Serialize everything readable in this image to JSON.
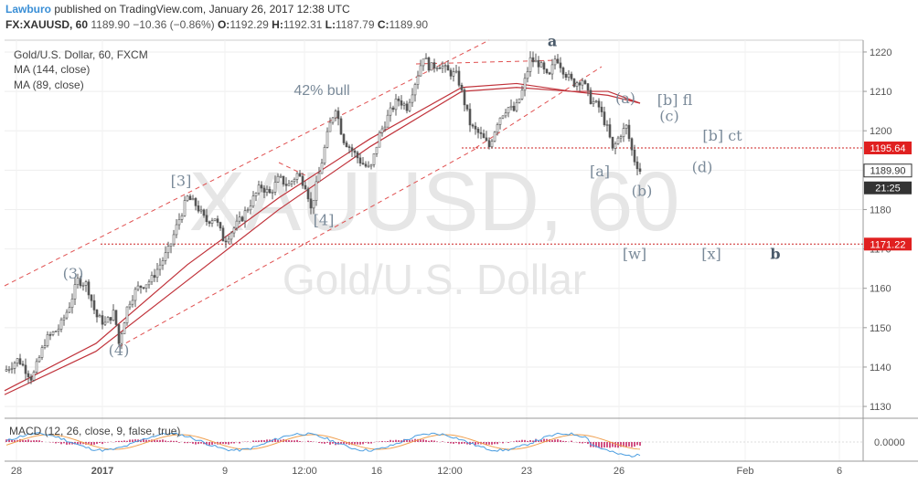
{
  "header": {
    "publisher": "Lawburo",
    "published_text": "published on TradingView.com, January 26, 2017 12:38 UTC",
    "symbol": "FX:XAUUSD, 60",
    "last": "1189.90",
    "change": "−10.36 (−0.86%)",
    "o_label": "O:",
    "o": "1192.29",
    "h_label": "H:",
    "h": "1192.31",
    "l_label": "L:",
    "l": "1187.79",
    "c_label": "C:",
    "c": "1189.90"
  },
  "legend": {
    "title": "Gold/U.S. Dollar, 60, FXCM",
    "ma1": "MA (144, close)",
    "ma2": "MA (89, close)",
    "macd": "MACD (12, 26, close, 9, false, true)"
  },
  "watermark": {
    "line1": "XAUUSD, 60",
    "line2": "Gold/U.S. Dollar"
  },
  "colors": {
    "up": "#555555",
    "down": "#555555",
    "ma": "#c0323a",
    "trend": "#e05050",
    "level": "#cc2222",
    "macd": "#4a9de0",
    "signal": "#f0a050",
    "hist": "#c2185b",
    "label_red": "#e02020",
    "label_dark": "#333333"
  },
  "price_tags": {
    "level1": "1195.64",
    "last": "1189.90",
    "countdown": "21:25",
    "level2": "1171.22"
  },
  "annotations": {
    "trend_label": "42% bull"
  },
  "chart_data": {
    "type": "candlestick",
    "x_ticks": [
      "28",
      "2017",
      "9",
      "12:00",
      "16",
      "12:00",
      "23",
      "26",
      "Feb",
      "6"
    ],
    "y_ticks": [
      1130,
      1140,
      1150,
      1160,
      1170,
      1180,
      1190,
      1200,
      1210,
      1220
    ],
    "ylim": [
      1127,
      1223
    ],
    "macd_ticks": [
      "0.0000"
    ],
    "path_points": [
      [
        0,
        1139
      ],
      [
        15,
        1142
      ],
      [
        30,
        1137
      ],
      [
        45,
        1147
      ],
      [
        60,
        1150
      ],
      [
        70,
        1155
      ],
      [
        80,
        1162
      ],
      [
        90,
        1161
      ],
      [
        100,
        1153
      ],
      [
        110,
        1151
      ],
      [
        120,
        1154
      ],
      [
        125,
        1146
      ],
      [
        135,
        1156
      ],
      [
        145,
        1160
      ],
      [
        160,
        1162
      ],
      [
        170,
        1166
      ],
      [
        180,
        1170
      ],
      [
        190,
        1177
      ],
      [
        200,
        1183
      ],
      [
        210,
        1181
      ],
      [
        220,
        1177
      ],
      [
        230,
        1178
      ],
      [
        240,
        1172
      ],
      [
        250,
        1175
      ],
      [
        260,
        1178
      ],
      [
        270,
        1182
      ],
      [
        280,
        1186
      ],
      [
        290,
        1184
      ],
      [
        300,
        1188
      ],
      [
        310,
        1186
      ],
      [
        320,
        1189
      ],
      [
        330,
        1186
      ],
      [
        335,
        1180
      ],
      [
        345,
        1190
      ],
      [
        355,
        1201
      ],
      [
        362,
        1206
      ],
      [
        370,
        1198
      ],
      [
        380,
        1195
      ],
      [
        390,
        1192
      ],
      [
        400,
        1190
      ],
      [
        410,
        1199
      ],
      [
        420,
        1204
      ],
      [
        430,
        1208
      ],
      [
        440,
        1206
      ],
      [
        450,
        1213
      ],
      [
        458,
        1219
      ],
      [
        465,
        1216
      ],
      [
        475,
        1217
      ],
      [
        485,
        1215
      ],
      [
        495,
        1214
      ],
      [
        502,
        1208
      ],
      [
        510,
        1201
      ],
      [
        520,
        1199
      ],
      [
        530,
        1196
      ],
      [
        540,
        1203
      ],
      [
        550,
        1206
      ],
      [
        558,
        1205
      ],
      [
        566,
        1210
      ],
      [
        575,
        1218
      ],
      [
        585,
        1217
      ],
      [
        595,
        1213
      ],
      [
        603,
        1219
      ],
      [
        612,
        1215
      ],
      [
        622,
        1212
      ],
      [
        632,
        1213
      ],
      [
        640,
        1208
      ],
      [
        650,
        1206
      ],
      [
        660,
        1200
      ],
      [
        665,
        1195
      ],
      [
        673,
        1199
      ],
      [
        680,
        1201
      ],
      [
        688,
        1193
      ],
      [
        695,
        1189.9
      ]
    ],
    "ma144": [
      [
        0,
        1133
      ],
      [
        100,
        1144
      ],
      [
        200,
        1162
      ],
      [
        300,
        1180
      ],
      [
        400,
        1196
      ],
      [
        500,
        1210
      ],
      [
        560,
        1211
      ],
      [
        620,
        1210
      ],
      [
        660,
        1209
      ],
      [
        695,
        1207
      ]
    ],
    "ma89": [
      [
        0,
        1134
      ],
      [
        100,
        1146
      ],
      [
        200,
        1166
      ],
      [
        300,
        1183
      ],
      [
        400,
        1198
      ],
      [
        500,
        1211
      ],
      [
        560,
        1212
      ],
      [
        620,
        1210
      ],
      [
        660,
        1210
      ],
      [
        695,
        1207
      ]
    ],
    "levels": [
      {
        "value": 1195.64,
        "x0": 505
      },
      {
        "value": 1171.22,
        "x0": 110
      }
    ],
    "wave_labels": [
      {
        "text": "(3)",
        "x": 80,
        "y": 1162.5,
        "color": "#7a8a99"
      },
      {
        "text": "(4)",
        "x": 130,
        "y": 1143,
        "color": "#7a8a99"
      },
      {
        "text": "[3]",
        "x": 198,
        "y": 1186,
        "color": "#7a8a99"
      },
      {
        "text": "[4]",
        "x": 354,
        "y": 1176,
        "color": "#7a8a99"
      },
      {
        "text": "a",
        "x": 604,
        "y": 1221.5,
        "color": "#4a5a6a",
        "bold": true
      },
      {
        "text": "(a)",
        "x": 684,
        "y": 1207,
        "color": "#7a8a99"
      },
      {
        "text": "[b] fl",
        "x": 738,
        "y": 1206.5,
        "color": "#7a8a99"
      },
      {
        "text": "(c)",
        "x": 732,
        "y": 1202.5,
        "color": "#7a8a99"
      },
      {
        "text": "[b] ct",
        "x": 790,
        "y": 1197.5,
        "color": "#7a8a99"
      },
      {
        "text": "[a]",
        "x": 656,
        "y": 1188.5,
        "color": "#7a8a99"
      },
      {
        "text": "(d)",
        "x": 768,
        "y": 1189.5,
        "color": "#7a8a99"
      },
      {
        "text": "(b)",
        "x": 702,
        "y": 1183.5,
        "color": "#7a8a99"
      },
      {
        "text": "[w]",
        "x": 694,
        "y": 1167.5,
        "color": "#7a8a99"
      },
      {
        "text": "[x]",
        "x": 778,
        "y": 1167.5,
        "color": "#7a8a99"
      },
      {
        "text": "b",
        "x": 848,
        "y": 1167.5,
        "color": "#4a5a6a",
        "bold": true
      }
    ]
  }
}
